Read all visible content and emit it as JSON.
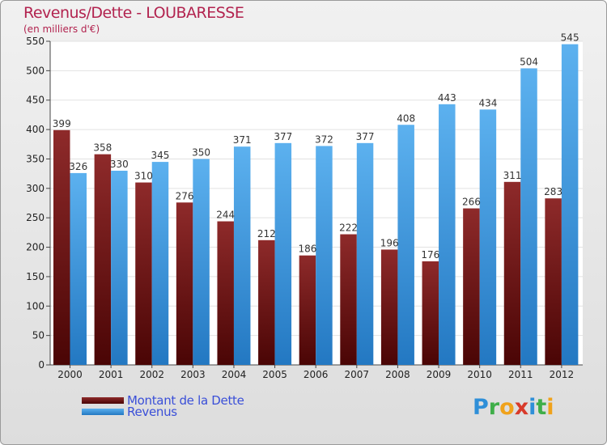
{
  "title": "Revenus/Dette - LOUBARESSE",
  "subtitle": "(en milliers d'€)",
  "chart_data": {
    "type": "bar",
    "categories": [
      "2000",
      "2001",
      "2002",
      "2003",
      "2004",
      "2005",
      "2006",
      "2007",
      "2008",
      "2009",
      "2010",
      "2011",
      "2012"
    ],
    "series": [
      {
        "name": "Montant de la Dette",
        "values": [
          399,
          358,
          310,
          276,
          244,
          212,
          186,
          222,
          196,
          176,
          266,
          311,
          283
        ],
        "color": "#7a1a1a"
      },
      {
        "name": "Revenus",
        "values": [
          326,
          330,
          345,
          350,
          371,
          377,
          372,
          377,
          408,
          443,
          434,
          504,
          545
        ],
        "color": "#4aa3e8"
      }
    ],
    "ylim": [
      0,
      550
    ],
    "yticks": [
      0,
      50,
      100,
      150,
      200,
      250,
      300,
      350,
      400,
      450,
      500,
      550
    ],
    "grid": true,
    "legend": "bottom-left"
  },
  "legend": {
    "debt_label": "Montant de la Dette",
    "revenue_label": "Revenus"
  },
  "logo": {
    "text": "Proxiti",
    "letters": [
      {
        "ch": "P",
        "color": "#2f8fd8"
      },
      {
        "ch": "r",
        "color": "#3fae49"
      },
      {
        "ch": "o",
        "color": "#f0a21b"
      },
      {
        "ch": "x",
        "color": "#d83a2a"
      },
      {
        "ch": "i",
        "color": "#2f8fd8"
      },
      {
        "ch": "t",
        "color": "#3fae49"
      },
      {
        "ch": "i",
        "color": "#f0a21b"
      }
    ]
  }
}
